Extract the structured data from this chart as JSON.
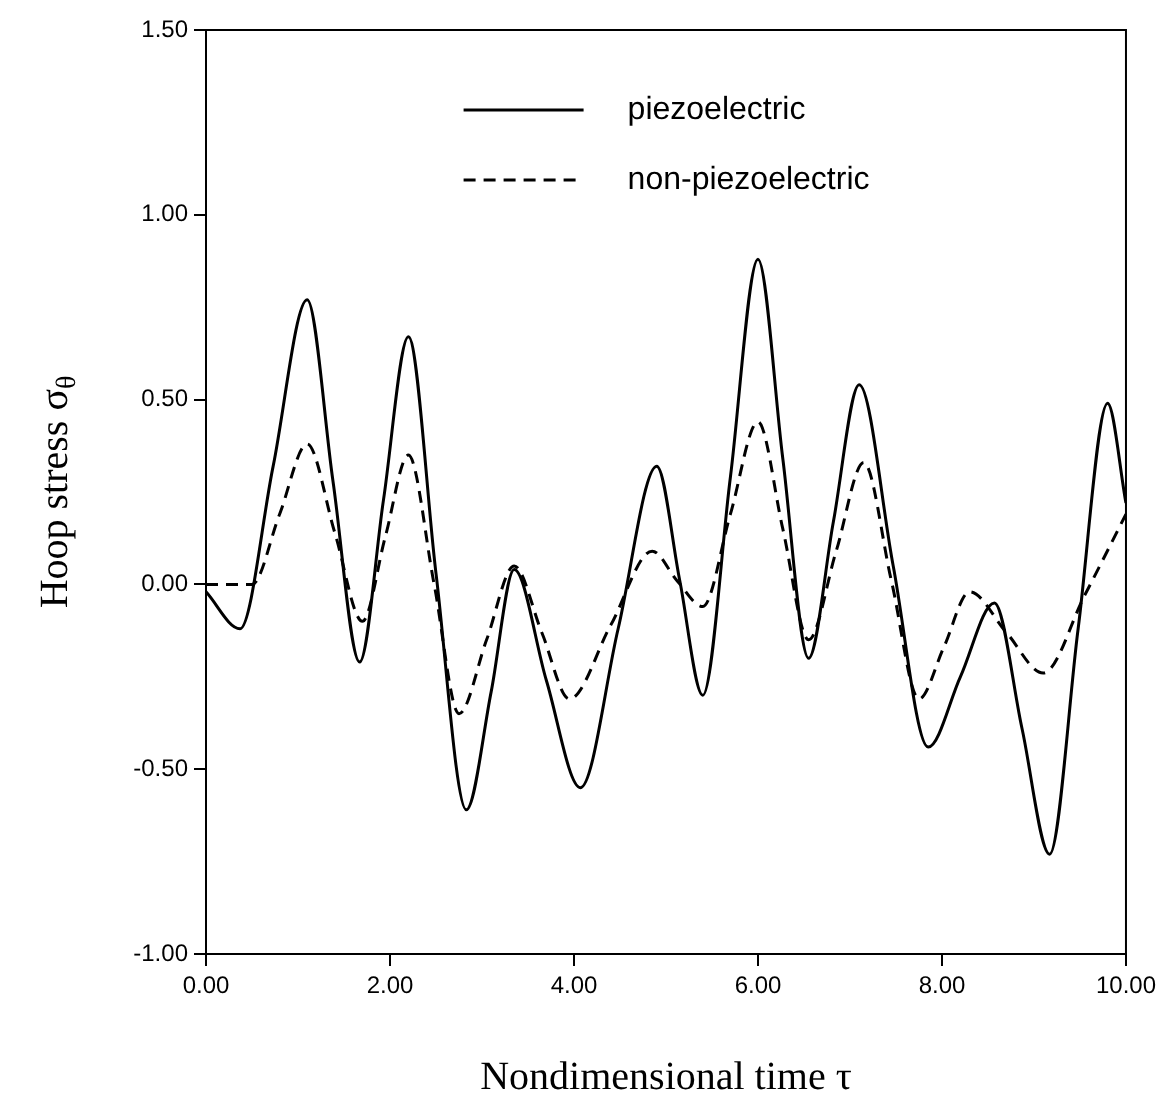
{
  "chart_data": {
    "type": "line",
    "xlabel": "Nondimensional time τ",
    "ylabel": "Hoop stress σ$_{θ}$",
    "xlim": [
      0,
      10
    ],
    "xticks": [
      {
        "value": 0,
        "label": "0.00"
      },
      {
        "value": 2,
        "label": "2.00"
      },
      {
        "value": 4,
        "label": "4.00"
      },
      {
        "value": 6,
        "label": "6.00"
      },
      {
        "value": 8,
        "label": "8.00"
      },
      {
        "value": 10,
        "label": "10.00"
      }
    ],
    "ylim": [
      -1,
      1.5
    ],
    "yticks": [
      {
        "value": -1,
        "label": "-1.00"
      },
      {
        "value": -0.5,
        "label": "-0.50"
      },
      {
        "value": 0,
        "label": "0.00"
      },
      {
        "value": 0.5,
        "label": "0.50"
      },
      {
        "value": 1,
        "label": "1.00"
      },
      {
        "value": 1.5,
        "label": "1.50"
      }
    ],
    "legend": "top",
    "marker": "none",
    "grid": false,
    "series": [
      {
        "name": "piezoelectric",
        "color": "#000000",
        "line_style": "solid",
        "x": [
          0,
          0.37,
          0.73,
          1.1,
          1.38,
          1.67,
          1.93,
          2.2,
          2.5,
          2.83,
          3.1,
          3.35,
          3.7,
          4.07,
          4.48,
          4.9,
          5.15,
          5.4,
          5.7,
          6.0,
          6.27,
          6.55,
          6.82,
          7.1,
          7.47,
          7.85,
          8.2,
          8.57,
          8.87,
          9.17,
          9.48,
          9.8,
          10
        ],
        "values": [
          -0.02,
          -0.12,
          0.32,
          0.77,
          0.28,
          -0.21,
          0.23,
          0.67,
          0.03,
          -0.61,
          -0.29,
          0.04,
          -0.26,
          -0.55,
          -0.12,
          0.32,
          0.01,
          -0.3,
          0.29,
          0.88,
          0.34,
          -0.2,
          0.17,
          0.54,
          0.05,
          -0.44,
          -0.25,
          -0.05,
          -0.39,
          -0.73,
          -0.12,
          0.49,
          0.22
        ]
      },
      {
        "name": "non-piezoelectric",
        "color": "#000000",
        "line_style": "dashed",
        "x": [
          0,
          0.5,
          0.8,
          1.1,
          1.4,
          1.7,
          1.95,
          2.2,
          2.48,
          2.75,
          3.05,
          3.35,
          3.65,
          3.95,
          4.4,
          4.85,
          5.12,
          5.4,
          5.7,
          6.0,
          6.27,
          6.55,
          6.85,
          7.15,
          7.45,
          7.75,
          8.02,
          8.3,
          8.7,
          9.1,
          9.55,
          10
        ],
        "values": [
          0,
          0,
          0.19,
          0.38,
          0.14,
          -0.1,
          0.13,
          0.35,
          0.0,
          -0.35,
          -0.15,
          0.05,
          -0.13,
          -0.31,
          -0.11,
          0.09,
          0.01,
          -0.06,
          0.19,
          0.44,
          0.15,
          -0.15,
          0.09,
          0.33,
          0.01,
          -0.31,
          -0.17,
          -0.02,
          -0.13,
          -0.24,
          -0.03,
          0.19
        ]
      }
    ]
  }
}
